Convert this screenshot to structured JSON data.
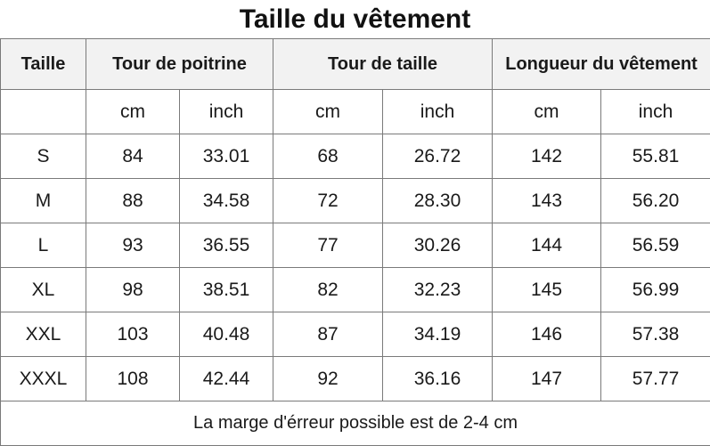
{
  "title": "Taille du vêtement",
  "headers": {
    "size": "Taille",
    "chest": "Tour de poitrine",
    "waist": "Tour de taille",
    "length": "Longueur du vêtement"
  },
  "units": [
    "cm",
    "inch",
    "cm",
    "inch",
    "cm",
    "inch"
  ],
  "rows": [
    [
      "S",
      "84",
      "33.01",
      "68",
      "26.72",
      "142",
      "55.81"
    ],
    [
      "M",
      "88",
      "34.58",
      "72",
      "28.30",
      "143",
      "56.20"
    ],
    [
      "L",
      "93",
      "36.55",
      "77",
      "30.26",
      "144",
      "56.59"
    ],
    [
      "XL",
      "98",
      "38.51",
      "82",
      "32.23",
      "145",
      "56.99"
    ],
    [
      "XXL",
      "103",
      "40.48",
      "87",
      "34.19",
      "146",
      "57.38"
    ],
    [
      "XXXL",
      "108",
      "42.44",
      "92",
      "36.16",
      "147",
      "57.77"
    ]
  ],
  "footer": "La marge d'érreur possible est de 2-4 cm"
}
